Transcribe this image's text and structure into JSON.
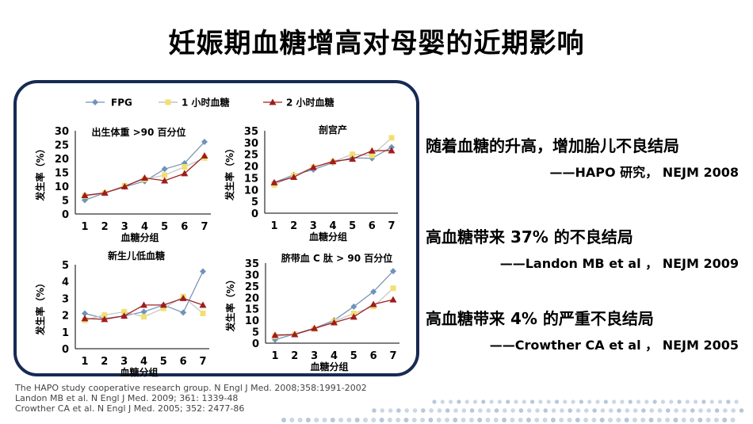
{
  "slide": {
    "title": "妊娠期血糖增高对母婴的近期影响"
  },
  "legend": [
    {
      "name": "FPG",
      "color": "#6f93bc",
      "marker": "diamond"
    },
    {
      "name": "1 小时血糖",
      "color": "#f0e070",
      "marker": "square"
    },
    {
      "name": "2 小时血糖",
      "color": "#a01c1c",
      "marker": "triangle"
    }
  ],
  "chart_data": [
    {
      "type": "line",
      "title": "出生体重 >90 百分位",
      "xlabel": "血糖分组",
      "ylabel": "发生率（%）",
      "x": [
        1,
        2,
        3,
        4,
        5,
        6,
        7
      ],
      "ylim": [
        0,
        30
      ],
      "yticks": [
        0,
        5,
        10,
        15,
        20,
        25,
        30
      ],
      "series": [
        {
          "name": "FPG",
          "values": [
            5.0,
            7.6,
            9.8,
            11.8,
            16.2,
            18.3,
            26.0
          ]
        },
        {
          "name": "1 小时血糖",
          "values": [
            6.5,
            7.5,
            10.2,
            12.5,
            14.0,
            17.0,
            20.2
          ]
        },
        {
          "name": "2 小时血糖",
          "values": [
            6.7,
            7.6,
            9.9,
            13.0,
            12.0,
            14.6,
            21.0
          ]
        }
      ]
    },
    {
      "type": "line",
      "title": "剖宫产",
      "xlabel": "血糖分组",
      "ylabel": "发生率（%）",
      "x": [
        1,
        2,
        3,
        4,
        5,
        6,
        7
      ],
      "ylim": [
        0,
        35
      ],
      "yticks": [
        0,
        5,
        10,
        15,
        20,
        25,
        30,
        35
      ],
      "series": [
        {
          "name": "FPG",
          "values": [
            13.0,
            16.3,
            18.5,
            21.5,
            23.5,
            23.3,
            28.0
          ]
        },
        {
          "name": "1 小时血糖",
          "values": [
            12.0,
            16.0,
            19.5,
            21.8,
            25.0,
            24.5,
            32.0
          ]
        },
        {
          "name": "2 小时血糖",
          "values": [
            13.0,
            15.3,
            19.5,
            22.0,
            23.0,
            26.5,
            26.6
          ]
        }
      ]
    },
    {
      "type": "line",
      "title": "新生儿低血糖",
      "xlabel": "血糖分组",
      "ylabel": "发生率（%）",
      "x": [
        1,
        2,
        3,
        4,
        5,
        6,
        7
      ],
      "ylim": [
        0,
        5
      ],
      "yticks": [
        0,
        1,
        2,
        3,
        4,
        5
      ],
      "series": [
        {
          "name": "FPG",
          "values": [
            2.1,
            1.8,
            1.95,
            2.2,
            2.6,
            2.15,
            4.6
          ]
        },
        {
          "name": "1 小时血糖",
          "values": [
            1.7,
            2.0,
            2.2,
            1.9,
            2.4,
            3.1,
            2.1
          ]
        },
        {
          "name": "2 小时血糖",
          "values": [
            1.8,
            1.75,
            1.95,
            2.6,
            2.6,
            3.0,
            2.6
          ]
        }
      ]
    },
    {
      "type": "line",
      "title": "脐带血 C 肽 > 90 百分位",
      "xlabel": "血糖分组",
      "ylabel": "发生率（%）",
      "x": [
        1,
        2,
        3,
        4,
        5,
        6,
        7
      ],
      "ylim": [
        0,
        35
      ],
      "yticks": [
        0,
        5,
        10,
        15,
        20,
        25,
        30,
        35
      ],
      "series": [
        {
          "name": "FPG",
          "values": [
            1.5,
            4.0,
            6.5,
            10.0,
            16.0,
            22.5,
            31.5
          ]
        },
        {
          "name": "1 小时血糖",
          "values": [
            3.0,
            3.8,
            6.2,
            9.5,
            13.0,
            16.0,
            24.0
          ]
        },
        {
          "name": "2 小时血糖",
          "values": [
            3.5,
            3.8,
            6.5,
            9.0,
            11.5,
            17.0,
            19.0
          ]
        }
      ]
    }
  ],
  "findings": [
    {
      "text": "随着血糖的升高，增加胎儿不良结局",
      "source": "——HAPO  研究， NEJM 2008"
    },
    {
      "text": "高血糖带来 37% 的不良结局",
      "source": "——Landon MB et al ， NEJM 2009"
    },
    {
      "text": "高血糖带来 4% 的严重不良结局",
      "source": "——Crowther CA et al ， NEJM 2005"
    }
  ],
  "references": [
    "The HAPO study cooperative research group. N Engl J Med. 2008;358:1991-2002",
    "Landon MB et al. N Engl J Med. 2009; 361: 1339-48",
    "Crowther CA et al. N Engl J Med. 2005; 352: 2477-86"
  ]
}
